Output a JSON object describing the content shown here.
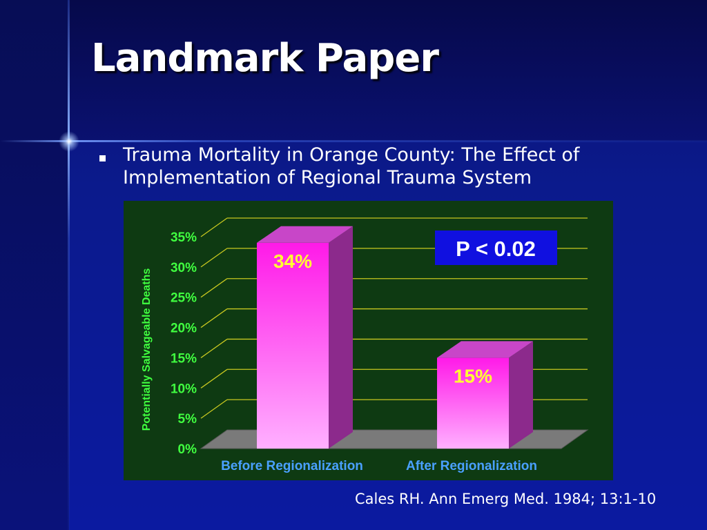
{
  "slide": {
    "title": "Landmark Paper",
    "bullet": "Trauma Mortality in Orange County: The Effect of Implementation of Regional Trauma System",
    "citation": "Cales RH. Ann Emerg Med. 1984; 13:1-10"
  },
  "colors": {
    "background": "#0b1a8c",
    "chart_background": "#0e3a12",
    "gridline": "#c8c820",
    "tick_label": "#40ff40",
    "ylabel": "#40ff40",
    "category_label": "#4aa0ff",
    "bar_front_top": "#ff1ae8",
    "bar_front_bottom": "#ffb0ff",
    "bar_side": "#8c2a8c",
    "bar_top": "#c846c8",
    "data_label": "#ffff33",
    "pvalue_box": "#1010e0",
    "pvalue_text": "#ffffff"
  },
  "chart_data": {
    "type": "bar",
    "categories": [
      "Before Regionalization",
      "After Regionalization"
    ],
    "values": [
      34,
      15
    ],
    "data_labels": [
      "34%",
      "15%"
    ],
    "ylabel": "Potentially Salvageable Deaths",
    "yticks": [
      "0%",
      "5%",
      "10%",
      "15%",
      "20%",
      "25%",
      "30%",
      "35%"
    ],
    "ytick_values": [
      0,
      5,
      10,
      15,
      20,
      25,
      30,
      35
    ],
    "ylim": [
      0,
      35
    ],
    "grid": true,
    "three_d": true,
    "annotation": "P < 0.02"
  }
}
